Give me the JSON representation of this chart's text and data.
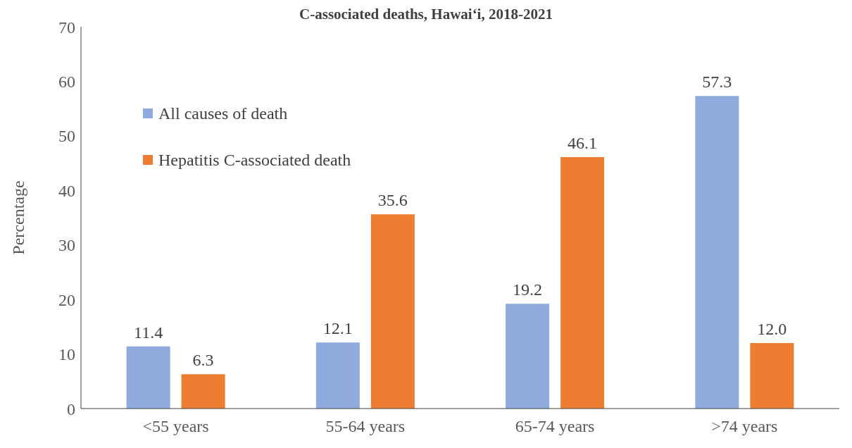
{
  "chart_data": {
    "type": "bar",
    "title": "C-associated deaths, Hawai‘i, 2018-2021",
    "ylabel": "Percentage",
    "categories": [
      "<55 years",
      "55-64 years",
      "65-74 years",
      ">74 years"
    ],
    "series": [
      {
        "name": "All causes of death",
        "color": "#8faadc",
        "values": [
          11.4,
          12.1,
          19.2,
          57.3
        ],
        "value_labels": [
          "11.4",
          "12.1",
          "19.2",
          "57.3"
        ]
      },
      {
        "name": "Hepatitis C-associated death",
        "color": "#ed7d31",
        "values": [
          6.3,
          35.6,
          46.1,
          12.0
        ],
        "value_labels": [
          "6.3",
          "35.6",
          "46.1",
          "12.0"
        ]
      }
    ],
    "ylim": [
      0,
      70
    ],
    "yticks": [
      0,
      10,
      20,
      30,
      40,
      50,
      60,
      70
    ],
    "grid": false,
    "legend": "top left"
  }
}
